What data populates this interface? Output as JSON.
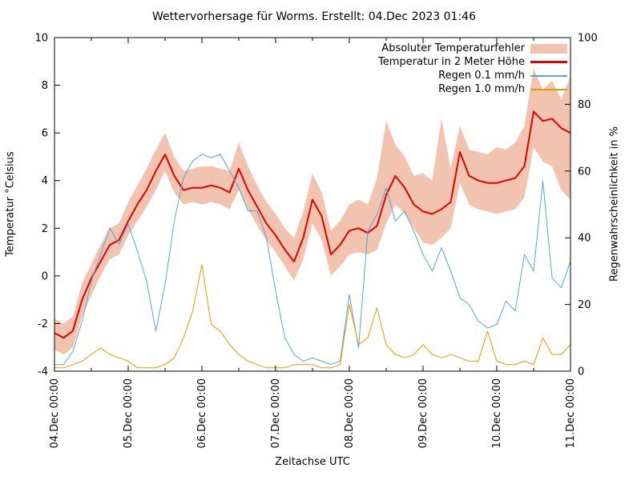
{
  "chart_data": {
    "type": "line",
    "title": "Wettervorhersage für Worms. Erstellt: 04.Dec 2023 01:46",
    "xlabel": "Zeitachse UTC",
    "ylabel_left": "Temperatur °Celsius",
    "ylabel_right": "Regenwahrscheinlichkeit in %",
    "background": "#ffffff",
    "grid": false,
    "legend_position": "top-right-inside",
    "x_hours_step": 3,
    "x_range_hours": [
      0,
      168
    ],
    "x_tick_hours": [
      0,
      24,
      48,
      72,
      96,
      120,
      144,
      168
    ],
    "x_tick_labels": [
      "04.Dec 00:00",
      "05.Dec 00:00",
      "06.Dec 00:00",
      "07.Dec 00:00",
      "08.Dec 00:00",
      "09.Dec 00:00",
      "10.Dec 00:00",
      "11.Dec 00:00"
    ],
    "x_minor_tick_hours": [
      12,
      36,
      60,
      84,
      108,
      132,
      156
    ],
    "ylim_left": [
      -4,
      10
    ],
    "y_ticks_left": [
      -4,
      -2,
      0,
      2,
      4,
      6,
      8,
      10
    ],
    "ylim_right": [
      0,
      100
    ],
    "y_ticks_right": [
      0,
      20,
      40,
      60,
      80,
      100
    ],
    "series": [
      {
        "name": "Absoluter Temperaturfehler",
        "type": "band",
        "axis": "left",
        "color": "#f2c3ae",
        "upper": [
          -1.8,
          -2.0,
          -1.7,
          -0.3,
          0.5,
          1.3,
          2.0,
          2.2,
          3.1,
          3.8,
          4.5,
          5.3,
          6.0,
          5.0,
          4.4,
          4.5,
          4.6,
          4.6,
          4.5,
          4.4,
          5.6,
          4.6,
          3.8,
          3.1,
          2.6,
          2.0,
          1.6,
          2.7,
          4.3,
          3.5,
          1.9,
          2.3,
          3.0,
          3.2,
          3.0,
          4.1,
          6.5,
          5.5,
          5.0,
          4.2,
          4.3,
          4.0,
          6.6,
          4.5,
          6.3,
          5.3,
          5.2,
          5.1,
          5.4,
          5.3,
          5.6,
          6.3,
          8.7,
          7.8,
          8.2,
          7.4,
          8.4
        ],
        "lower": [
          -3.1,
          -3.3,
          -3.0,
          -1.7,
          -0.8,
          0.0,
          0.7,
          0.9,
          1.7,
          2.3,
          2.9,
          3.6,
          4.4,
          3.5,
          3.0,
          3.1,
          3.0,
          3.1,
          3.0,
          2.8,
          3.6,
          2.8,
          2.1,
          1.5,
          1.0,
          0.4,
          -0.2,
          0.7,
          2.2,
          1.5,
          0.0,
          0.4,
          0.9,
          1.0,
          0.9,
          1.1,
          2.2,
          3.0,
          2.6,
          2.0,
          1.4,
          1.3,
          1.6,
          2.0,
          3.9,
          3.0,
          2.8,
          2.7,
          2.6,
          2.7,
          2.8,
          3.3,
          5.4,
          4.8,
          4.6,
          3.6,
          3.2
        ]
      },
      {
        "name": "Temperatur in 2 Meter Höhe",
        "type": "line",
        "axis": "left",
        "color": "#e00000",
        "line_width": 2,
        "values": [
          -2.4,
          -2.6,
          -2.3,
          -1.0,
          -0.1,
          0.6,
          1.3,
          1.5,
          2.3,
          3.0,
          3.6,
          4.4,
          5.1,
          4.2,
          3.6,
          3.7,
          3.7,
          3.8,
          3.7,
          3.5,
          4.5,
          3.6,
          2.9,
          2.2,
          1.7,
          1.1,
          0.6,
          1.6,
          3.2,
          2.5,
          0.9,
          1.3,
          1.9,
          2.0,
          1.8,
          2.1,
          3.4,
          4.2,
          3.7,
          3.0,
          2.7,
          2.6,
          2.8,
          3.1,
          5.2,
          4.2,
          4.0,
          3.9,
          3.9,
          4.0,
          4.1,
          4.6,
          6.9,
          6.5,
          6.6,
          6.2,
          6.0
        ]
      },
      {
        "name": "Regen 0.1 mm/h",
        "type": "line",
        "axis": "right",
        "color": "#55a7d9",
        "line_width": 1,
        "values": [
          2,
          2,
          6,
          15,
          27,
          35,
          43,
          38,
          44,
          36,
          27,
          12,
          26,
          45,
          58,
          63,
          65,
          64,
          65,
          60,
          55,
          48,
          48,
          40,
          24,
          10,
          5,
          3,
          4,
          3,
          2,
          3,
          23,
          7,
          42,
          47,
          55,
          45,
          48,
          42,
          35,
          30,
          37,
          30,
          22,
          20,
          15,
          13,
          14,
          21,
          18,
          35,
          30,
          57,
          28,
          25,
          33
        ]
      },
      {
        "name": "Regen 1.0 mm/h",
        "type": "line",
        "axis": "right",
        "color": "#e09c00",
        "line_width": 1,
        "values": [
          1,
          1,
          2,
          3,
          5,
          7,
          5,
          4,
          3,
          1,
          1,
          1,
          2,
          4,
          10,
          18,
          32,
          14,
          12,
          8,
          5,
          3,
          2,
          1,
          1,
          1,
          2,
          2,
          2,
          1,
          1,
          2,
          20,
          8,
          10,
          19,
          8,
          5,
          4,
          5,
          8,
          5,
          4,
          5,
          4,
          3,
          3,
          12,
          3,
          2,
          2,
          3,
          2,
          10,
          5,
          5,
          8
        ]
      }
    ]
  }
}
